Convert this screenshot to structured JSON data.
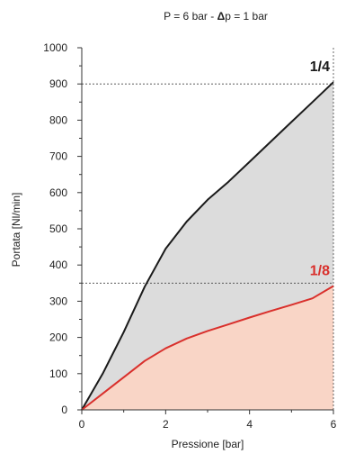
{
  "chart_data": {
    "type": "area",
    "title_prefix": "P = 6 bar - ",
    "title_delta": "Δ",
    "title_suffix": "p = 1 bar",
    "xlabel": "Pressione [bar]",
    "ylabel": "Portata [Nl/min]",
    "xlim": [
      0,
      6
    ],
    "ylim": [
      0,
      1000
    ],
    "x_ticks": [
      0,
      2,
      4,
      6
    ],
    "y_ticks": [
      0,
      100,
      200,
      300,
      400,
      500,
      600,
      700,
      800,
      900,
      1000
    ],
    "reference_lines": [
      900,
      350
    ],
    "series": [
      {
        "name": "1/4",
        "line_color": "#1a1a1a",
        "label_color": "#1a1a1a",
        "fill_color": "#dcdcdc",
        "x": [
          0,
          0.5,
          1.0,
          1.5,
          2.0,
          2.5,
          3.0,
          3.5,
          4.0,
          4.5,
          5.0,
          5.5,
          6.0
        ],
        "y": [
          0,
          100,
          215,
          340,
          445,
          520,
          580,
          630,
          685,
          740,
          795,
          850,
          905
        ]
      },
      {
        "name": "1/8",
        "line_color": "#d9302c",
        "label_color": "#d9302c",
        "fill_color": "#f9d5c6",
        "x": [
          0,
          0.5,
          1.0,
          1.5,
          2.0,
          2.5,
          3.0,
          3.5,
          4.0,
          4.5,
          5.0,
          5.5,
          6.0
        ],
        "y": [
          0,
          45,
          90,
          135,
          170,
          197,
          218,
          236,
          255,
          273,
          290,
          308,
          342
        ]
      }
    ]
  }
}
